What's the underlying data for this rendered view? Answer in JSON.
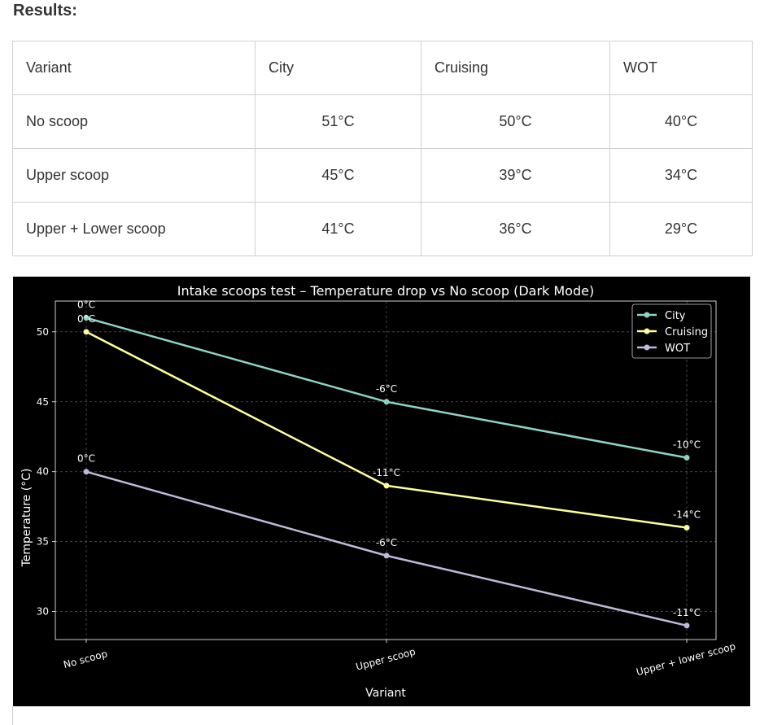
{
  "heading": "Results:",
  "table": {
    "headers": [
      "Variant",
      "City",
      "Cruising",
      "WOT"
    ],
    "rows": [
      [
        "No scoop",
        "51°C",
        "50°C",
        "40°C"
      ],
      [
        "Upper scoop",
        "45°C",
        "39°C",
        "34°C"
      ],
      [
        "Upper + Lower scoop",
        "41°C",
        "36°C",
        "29°C"
      ]
    ]
  },
  "chart_data": {
    "type": "line",
    "title": "Intake scoops test – Temperature drop vs No scoop (Dark Mode)",
    "xlabel": "Variant",
    "ylabel": "Temperature (°C)",
    "categories": [
      "No scoop",
      "Upper scoop",
      "Upper + lower scoop"
    ],
    "ylim": [
      28,
      52.2
    ],
    "yticks": [
      30,
      35,
      40,
      45,
      50
    ],
    "grid": true,
    "legend_position": "top-right",
    "background": "#000000",
    "series": [
      {
        "name": "City",
        "color": "#8dd3c7",
        "values": [
          51,
          45,
          41
        ],
        "labels": [
          "0°C",
          "-6°C",
          "-10°C"
        ]
      },
      {
        "name": "Cruising",
        "color": "#ffff99",
        "values": [
          50,
          39,
          36
        ],
        "labels": [
          "0°C",
          "-11°C",
          "-14°C"
        ]
      },
      {
        "name": "WOT",
        "color": "#bebada",
        "values": [
          40,
          34,
          29
        ],
        "labels": [
          "0°C",
          "-6°C",
          "-11°C"
        ]
      }
    ]
  }
}
